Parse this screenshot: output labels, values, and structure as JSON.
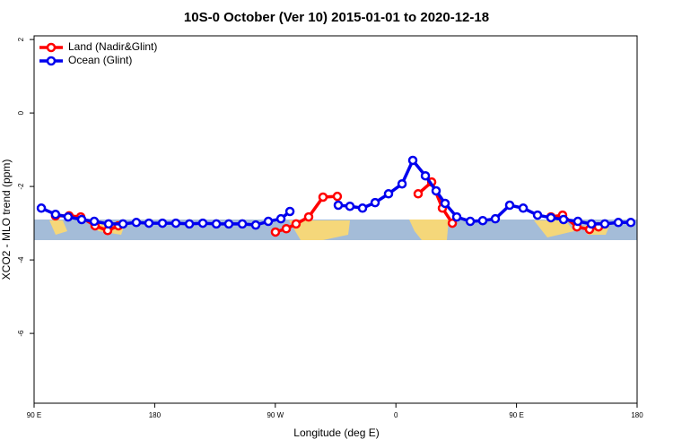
{
  "chart_data": {
    "type": "line",
    "title": "10S-0 October (Ver 10)   2015-01-01 to 2020-12-18",
    "x_label": "Longitude (deg E)",
    "y_label": "XCO2 - MLO trend (ppm)",
    "xlim": [
      90,
      540
    ],
    "xticks": [
      {
        "value": 90,
        "label": "90 E"
      },
      180,
      {
        "value": 270,
        "label": "90 W"
      },
      {
        "value": 360,
        "label": "0"
      },
      {
        "value": 450,
        "label": "90 E"
      },
      {
        "value": 540,
        "label": "180"
      }
    ],
    "ylim": [
      -7.9,
      2.1
    ],
    "yticks": [
      -6,
      -4,
      -2,
      0,
      2
    ],
    "legend": "top-left",
    "series": [
      {
        "name": "Land (Nadir&Glint)",
        "color": "#ff0000",
        "x": [
          106,
          116.1,
          124.8,
          135.5,
          144.9,
          152.9,
          null,
          270.1,
          278.2,
          285.5,
          294.9,
          305.6,
          316.3,
          null,
          376.6,
          386.7,
          394.7,
          402.1,
          null,
          475.7,
          484.4,
          495.1,
          504.5,
          511.2
        ],
        "values": [
          -2.8,
          -2.8,
          -2.83,
          -3.07,
          -3.2,
          -3.07,
          null,
          -3.24,
          -3.15,
          -3.02,
          -2.83,
          -2.29,
          -2.27,
          null,
          -2.2,
          -1.88,
          -2.59,
          -3.0,
          null,
          -2.83,
          -2.78,
          -3.1,
          -3.17,
          -3.1
        ]
      },
      {
        "name": "Ocean (Glint)",
        "color": "#0000ee",
        "x": [
          95.4,
          106,
          115.4,
          125.5,
          134.9,
          145.6,
          156.3,
          166.3,
          175.7,
          185.8,
          195.8,
          205.9,
          215.9,
          226,
          235.3,
          245.4,
          255.4,
          264.8,
          274.2,
          280.9,
          null,
          317,
          325.7,
          335.1,
          344.5,
          354.5,
          364.6,
          372.6,
          382,
          390,
          396.7,
          405.4,
          415.5,
          424.8,
          434.2,
          444.9,
          455,
          465.7,
          475.7,
          485.1,
          495.8,
          505.9,
          515.9,
          526,
          535.3
        ],
        "values": [
          -2.59,
          -2.76,
          -2.83,
          -2.9,
          -2.95,
          -3.02,
          -3.02,
          -2.98,
          -3.0,
          -3.0,
          -3.0,
          -3.02,
          -3.0,
          -3.02,
          -3.02,
          -3.02,
          -3.05,
          -2.95,
          -2.88,
          -2.68,
          null,
          -2.51,
          -2.54,
          -2.59,
          -2.44,
          -2.2,
          -1.93,
          -1.29,
          -1.71,
          -2.12,
          -2.46,
          -2.83,
          -2.95,
          -2.93,
          -2.88,
          -2.51,
          -2.59,
          -2.78,
          -2.85,
          -2.9,
          -2.95,
          -3.02,
          -3.02,
          -2.98,
          -2.98
        ]
      }
    ]
  }
}
